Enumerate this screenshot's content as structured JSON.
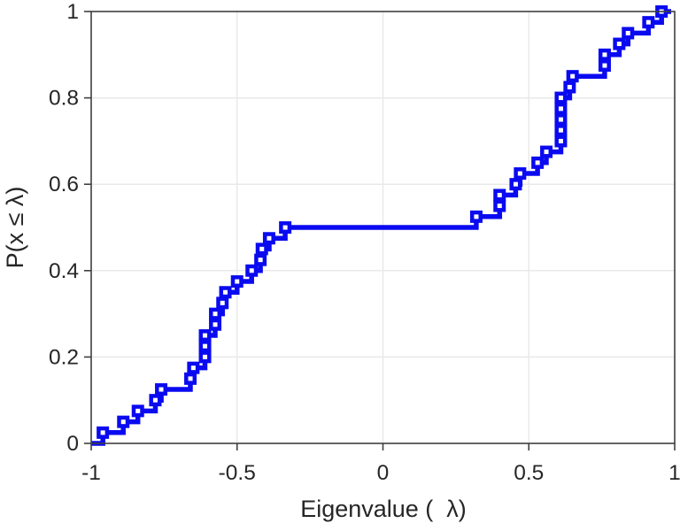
{
  "figure": {
    "background": "#ffffff"
  },
  "chart_data": {
    "type": "line",
    "subtype": "empirical-cdf-stairs-with-open-square-markers",
    "title": "",
    "xlabel": "Eigenvalue (  λ)",
    "ylabel": "P(x ≤ λ)",
    "xlim": [
      -1,
      1
    ],
    "ylim": [
      0,
      1
    ],
    "x_ticks": [
      -1,
      -0.5,
      0,
      0.5,
      1
    ],
    "x_tick_labels": [
      "-1",
      "-0.5",
      "0",
      "0.5",
      "1"
    ],
    "y_ticks": [
      0,
      0.2,
      0.4,
      0.6,
      0.8,
      1
    ],
    "y_tick_labels": [
      "0",
      "0.2",
      "0.4",
      "0.6",
      "0.8",
      "1"
    ],
    "grid": true,
    "legend": null,
    "n_points": 40,
    "cdf_step": 0.025,
    "plateau": {
      "level": 0.5,
      "from": -0.335,
      "to": 0.32
    },
    "series": [
      {
        "name": "eigenvalue-ecdf",
        "marker": "open-square",
        "eigenvalues": [
          -0.96,
          -0.89,
          -0.84,
          -0.78,
          -0.76,
          -0.66,
          -0.65,
          -0.61,
          -0.61,
          -0.61,
          -0.575,
          -0.575,
          -0.55,
          -0.54,
          -0.5,
          -0.45,
          -0.42,
          -0.415,
          -0.39,
          -0.335,
          0.32,
          0.4,
          0.4,
          0.455,
          0.47,
          0.53,
          0.56,
          0.61,
          0.61,
          0.61,
          0.61,
          0.61,
          0.64,
          0.65,
          0.76,
          0.76,
          0.81,
          0.84,
          0.91,
          0.955
        ]
      }
    ]
  },
  "style": {
    "line_color": "#0a0af0",
    "marker_fill": "#ffffff",
    "axis_color": "#3f3f3f",
    "grid_color": "#e9e9e9",
    "tick_label_color": "#262626"
  }
}
